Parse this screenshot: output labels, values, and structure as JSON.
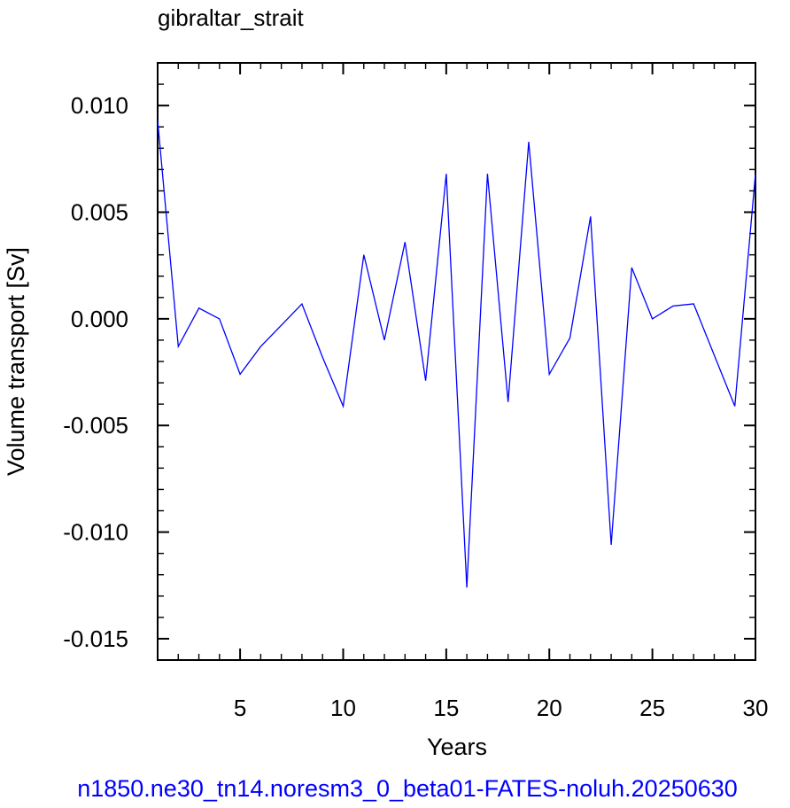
{
  "chart_data": {
    "type": "line",
    "title": "gibraltar_strait",
    "xlabel": "Years",
    "ylabel": "Volume transport [Sv]",
    "footer": "n1850.ne30_tn14.noresm3_0_beta01-FATES-noluh.20250630",
    "xlim": [
      1,
      30
    ],
    "ylim": [
      -0.016,
      0.012
    ],
    "x_ticks": [
      5,
      10,
      15,
      20,
      25,
      30
    ],
    "x_tick_labels": [
      "5",
      "10",
      "15",
      "20",
      "25",
      "30"
    ],
    "y_ticks": [
      0.01,
      0.005,
      0.0,
      -0.005,
      -0.01,
      -0.015
    ],
    "y_tick_labels": [
      "0.010",
      "0.005",
      "0.000",
      "-0.005",
      "-0.010",
      "-0.015"
    ],
    "grid": false,
    "line_color": "#0000ff",
    "series": [
      {
        "x": [
          1,
          2,
          3,
          4,
          5,
          6,
          7,
          8,
          9,
          10,
          11,
          12,
          13,
          14,
          15,
          16,
          17,
          18,
          19,
          20,
          21,
          22,
          23,
          24,
          25,
          26,
          27,
          28,
          29,
          30
        ],
        "values": [
          0.0093,
          -0.0013,
          0.0005,
          0.0,
          -0.0026,
          -0.0013,
          -0.0003,
          0.0007,
          -0.0018,
          -0.0041,
          0.003,
          -0.001,
          0.0036,
          -0.0029,
          0.0068,
          -0.0126,
          0.0068,
          -0.0039,
          0.0083,
          -0.0026,
          -0.0009,
          0.0048,
          -0.0106,
          0.0024,
          0.0,
          0.0006,
          0.0007,
          -0.0017,
          -0.0041,
          0.0068
        ]
      }
    ]
  }
}
